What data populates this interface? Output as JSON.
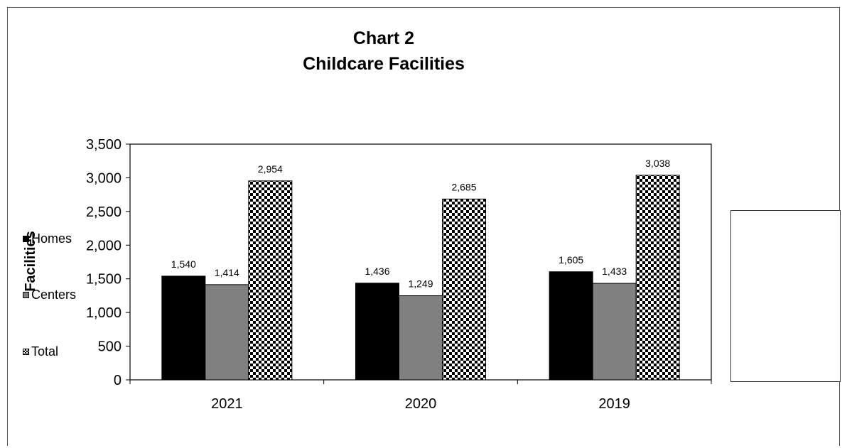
{
  "chart_data": {
    "type": "bar",
    "title_line1": "Chart 2",
    "title_line2": "Childcare Facilities",
    "ylabel": "Facilities",
    "xlabel": "",
    "categories": [
      "2021",
      "2020",
      "2019"
    ],
    "series": [
      {
        "name": "Homes",
        "values": [
          1540,
          1436,
          1605
        ],
        "color": "#000000",
        "pattern": "solid"
      },
      {
        "name": "Centers",
        "values": [
          1414,
          1249,
          1433
        ],
        "color": "#808080",
        "pattern": "solid"
      },
      {
        "name": "Total",
        "values": [
          2954,
          2685,
          3038
        ],
        "color": "#000000",
        "pattern": "checker"
      }
    ],
    "data_labels": [
      [
        "1,540",
        "1,436",
        "1,605"
      ],
      [
        "1,414",
        "1,249",
        "1,433"
      ],
      [
        "2,954",
        "2,685",
        "3,038"
      ]
    ],
    "ylim": [
      0,
      3500
    ],
    "yticks": [
      "0",
      "500",
      "1,000",
      "1,500",
      "2,000",
      "2,500",
      "3,000",
      "3,500"
    ],
    "ytick_values": [
      0,
      500,
      1000,
      1500,
      2000,
      2500,
      3000,
      3500
    ],
    "legend_position": "right",
    "grid": false
  }
}
